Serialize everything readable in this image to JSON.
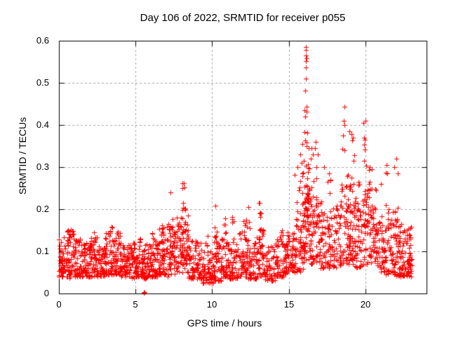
{
  "page": {
    "background": "#ffffff",
    "text_color": "#000000"
  },
  "chart_data": {
    "type": "scatter",
    "title": "Day 106 of 2022, SRMTID for receiver p055",
    "xlabel": "GPS time / hours",
    "ylabel": "SRMTID / TECUs",
    "xlim": [
      0,
      24
    ],
    "ylim": [
      0,
      0.6
    ],
    "x_ticks": [
      0,
      5,
      10,
      15,
      20
    ],
    "x_tick_labels": [
      "0",
      "5",
      "10",
      "15",
      "20"
    ],
    "y_tick_values": [
      0,
      0.1,
      0.2,
      0.3,
      0.4,
      0.5,
      0.6
    ],
    "y_tick_labels": [
      "0",
      "0.1",
      "0.2",
      "0.3",
      "0.4",
      "0.5",
      "0.6"
    ],
    "grid": true,
    "legend": "none",
    "marker": "plus",
    "marker_color": "#ff0000",
    "marker_size_px": 7,
    "axis_color": "#000000",
    "grid_color": "#a6a6a6",
    "seed": 106,
    "density_bands_format": "[x_start_hours, x_end_hours, n_points, y_min_TECUs, y_max_TECUs, low_skew_exponent]",
    "density_bands": [
      [
        0.0,
        0.5,
        52,
        0.04,
        0.135,
        1.6
      ],
      [
        0.5,
        1.0,
        52,
        0.035,
        0.155,
        1.55
      ],
      [
        1.0,
        1.5,
        52,
        0.04,
        0.13,
        1.65
      ],
      [
        1.5,
        2.0,
        52,
        0.04,
        0.125,
        1.65
      ],
      [
        2.0,
        2.5,
        52,
        0.04,
        0.145,
        1.6
      ],
      [
        2.5,
        3.0,
        52,
        0.04,
        0.125,
        1.65
      ],
      [
        3.0,
        3.5,
        52,
        0.045,
        0.155,
        1.55
      ],
      [
        3.5,
        4.0,
        52,
        0.045,
        0.16,
        1.55
      ],
      [
        4.0,
        4.5,
        52,
        0.04,
        0.13,
        1.65
      ],
      [
        4.5,
        5.0,
        52,
        0.035,
        0.12,
        1.65
      ],
      [
        5.0,
        5.5,
        52,
        0.04,
        0.135,
        1.65
      ],
      [
        5.5,
        6.0,
        52,
        0.035,
        0.125,
        1.65
      ],
      [
        6.0,
        6.5,
        52,
        0.04,
        0.145,
        1.6
      ],
      [
        6.5,
        7.0,
        52,
        0.045,
        0.155,
        1.55
      ],
      [
        7.0,
        7.6,
        58,
        0.04,
        0.165,
        1.55
      ],
      [
        7.6,
        8.45,
        80,
        0.05,
        0.185,
        1.4
      ],
      [
        8.45,
        9.3,
        76,
        0.035,
        0.125,
        1.65
      ],
      [
        9.3,
        10.1,
        70,
        0.025,
        0.1,
        1.65
      ],
      [
        10.1,
        10.6,
        48,
        0.03,
        0.125,
        1.65
      ],
      [
        10.6,
        11.1,
        48,
        0.04,
        0.145,
        1.55
      ],
      [
        11.1,
        11.7,
        54,
        0.035,
        0.125,
        1.65
      ],
      [
        11.7,
        12.3,
        54,
        0.04,
        0.15,
        1.55
      ],
      [
        12.3,
        12.9,
        54,
        0.035,
        0.135,
        1.65
      ],
      [
        12.9,
        13.4,
        44,
        0.04,
        0.155,
        1.55
      ],
      [
        13.4,
        14.1,
        58,
        0.03,
        0.115,
        1.65
      ],
      [
        14.1,
        14.8,
        58,
        0.04,
        0.135,
        1.6
      ],
      [
        14.8,
        15.4,
        54,
        0.05,
        0.155,
        1.5
      ],
      [
        15.4,
        16.0,
        52,
        0.05,
        0.185,
        1.4
      ],
      [
        16.0,
        16.4,
        46,
        0.08,
        0.26,
        1.25
      ],
      [
        16.4,
        17.0,
        54,
        0.07,
        0.23,
        1.35
      ],
      [
        17.0,
        17.7,
        58,
        0.06,
        0.185,
        1.45
      ],
      [
        17.7,
        18.4,
        58,
        0.06,
        0.21,
        1.4
      ],
      [
        18.4,
        19.3,
        80,
        0.07,
        0.26,
        1.25
      ],
      [
        19.3,
        19.9,
        54,
        0.06,
        0.23,
        1.45
      ],
      [
        19.9,
        20.7,
        70,
        0.07,
        0.25,
        1.35
      ],
      [
        20.7,
        21.3,
        54,
        0.05,
        0.185,
        1.5
      ],
      [
        21.3,
        22.0,
        58,
        0.045,
        0.195,
        1.5
      ],
      [
        22.0,
        22.6,
        54,
        0.04,
        0.175,
        1.55
      ],
      [
        22.6,
        23.05,
        44,
        0.04,
        0.15,
        1.6
      ],
      [
        0.55,
        0.85,
        5,
        0.12,
        0.155,
        1.2
      ],
      [
        2.1,
        2.35,
        4,
        0.11,
        0.145,
        1.2
      ],
      [
        3.3,
        3.65,
        6,
        0.12,
        0.165,
        1.2
      ],
      [
        6.6,
        6.95,
        6,
        0.12,
        0.17,
        1.2
      ],
      [
        7.3,
        7.55,
        5,
        0.12,
        0.19,
        1.1
      ],
      [
        8.05,
        8.3,
        14,
        0.13,
        0.265,
        1.0
      ],
      [
        9.55,
        9.75,
        4,
        0.1,
        0.15,
        1.2
      ],
      [
        10.15,
        10.3,
        5,
        0.12,
        0.205,
        1.0
      ],
      [
        10.75,
        10.95,
        5,
        0.12,
        0.185,
        1.1
      ],
      [
        11.25,
        11.4,
        5,
        0.12,
        0.195,
        1.0
      ],
      [
        12.0,
        12.45,
        8,
        0.13,
        0.175,
        1.1
      ],
      [
        12.9,
        13.3,
        9,
        0.13,
        0.22,
        1.1
      ],
      [
        14.5,
        14.75,
        4,
        0.11,
        0.15,
        1.2
      ],
      [
        15.35,
        15.95,
        13,
        0.15,
        0.29,
        1.1
      ],
      [
        16.0,
        16.3,
        24,
        0.18,
        0.385,
        0.95
      ],
      [
        16.35,
        16.95,
        15,
        0.15,
        0.36,
        1.2
      ],
      [
        17.1,
        17.35,
        5,
        0.15,
        0.25,
        1.1
      ],
      [
        17.5,
        17.8,
        6,
        0.16,
        0.28,
        1.1
      ],
      [
        18.45,
        19.3,
        24,
        0.15,
        0.385,
        1.1
      ],
      [
        19.4,
        19.6,
        5,
        0.14,
        0.27,
        1.1
      ],
      [
        19.9,
        20.15,
        9,
        0.15,
        0.38,
        1.05
      ],
      [
        20.15,
        20.65,
        11,
        0.14,
        0.3,
        1.2
      ],
      [
        21.3,
        21.55,
        7,
        0.14,
        0.305,
        1.15
      ],
      [
        21.9,
        22.25,
        7,
        0.13,
        0.28,
        1.2
      ],
      [
        22.4,
        23.0,
        9,
        0.12,
        0.19,
        1.3
      ]
    ],
    "outlier_points_format": "[x_hours, y_TECUs]",
    "outlier_points": [
      [
        5.52,
        0.002
      ],
      [
        5.6,
        0.003
      ],
      [
        7.3,
        0.24
      ],
      [
        8.14,
        0.262
      ],
      [
        8.18,
        0.252
      ],
      [
        10.2,
        0.208
      ],
      [
        12.35,
        0.205
      ],
      [
        13.1,
        0.215
      ],
      [
        15.55,
        0.3
      ],
      [
        15.75,
        0.33
      ],
      [
        15.85,
        0.31
      ],
      [
        15.9,
        0.355
      ],
      [
        16.05,
        0.435
      ],
      [
        16.06,
        0.42
      ],
      [
        16.1,
        0.585
      ],
      [
        16.13,
        0.578
      ],
      [
        16.1,
        0.565
      ],
      [
        16.15,
        0.558
      ],
      [
        16.11,
        0.552
      ],
      [
        16.1,
        0.537
      ],
      [
        16.13,
        0.51
      ],
      [
        16.09,
        0.482
      ],
      [
        16.15,
        0.443
      ],
      [
        16.17,
        0.432
      ],
      [
        16.5,
        0.345
      ],
      [
        16.6,
        0.33
      ],
      [
        16.75,
        0.36
      ],
      [
        16.8,
        0.3
      ],
      [
        17.3,
        0.3
      ],
      [
        17.65,
        0.285
      ],
      [
        18.62,
        0.443
      ],
      [
        18.6,
        0.41
      ],
      [
        18.66,
        0.4
      ],
      [
        18.55,
        0.375
      ],
      [
        18.95,
        0.385
      ],
      [
        19.1,
        0.378
      ],
      [
        19.2,
        0.37
      ],
      [
        19.87,
        0.405
      ],
      [
        19.92,
        0.37
      ],
      [
        20.0,
        0.41
      ],
      [
        20.3,
        0.3
      ],
      [
        20.45,
        0.295
      ],
      [
        21.0,
        0.26
      ],
      [
        21.4,
        0.305
      ],
      [
        21.45,
        0.285
      ],
      [
        21.9,
        0.3
      ],
      [
        22.05,
        0.32
      ],
      [
        22.1,
        0.285
      ]
    ]
  }
}
